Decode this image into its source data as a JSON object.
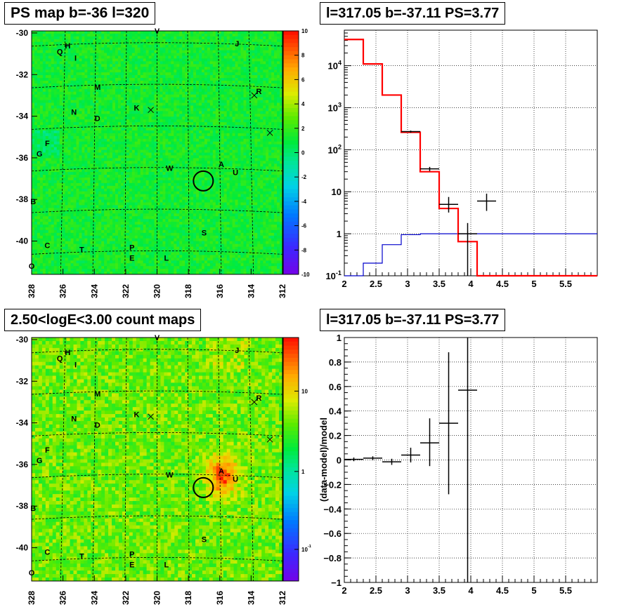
{
  "panels": {
    "tl_title": "PS map b=-36 l=320",
    "tr_title": "l=317.05 b=-37.11 PS=3.77",
    "bl_title": "2.50<logE<3.00 count maps",
    "br_title": "l=317.05 b=-37.11 PS=3.77"
  },
  "colors": {
    "model_red": "#ff0000",
    "blue": "#0000cc",
    "data": "#000000"
  },
  "chart_data": [
    {
      "type": "heatmap",
      "title": "PS map b=-36 l=320",
      "x_ticks": [
        "328",
        "326",
        "324",
        "322",
        "320",
        "318",
        "316",
        "314",
        "312"
      ],
      "y_ticks": [
        "-30",
        "-32",
        "-34",
        "-36",
        "-38",
        "-40"
      ],
      "xlim": [
        328,
        312
      ],
      "ylim": [
        -41.6,
        -29.9
      ],
      "colorbar": {
        "min": -10,
        "max": 10,
        "ticks": [
          "10",
          "8",
          "6",
          "4",
          "2",
          "0",
          "-2",
          "-4",
          "-6",
          "-8",
          "-10"
        ]
      },
      "labels": [
        {
          "t": "V",
          "l": 320.0,
          "b": -29.9
        },
        {
          "t": "J",
          "l": 314.9,
          "b": -30.5
        },
        {
          "t": "H",
          "l": 325.7,
          "b": -30.6
        },
        {
          "t": "Q",
          "l": 326.2,
          "b": -30.9
        },
        {
          "t": "I",
          "l": 325.2,
          "b": -31.2
        },
        {
          "t": "M",
          "l": 323.8,
          "b": -32.6
        },
        {
          "t": "R",
          "l": 313.5,
          "b": -32.8
        },
        {
          "t": "K",
          "l": 321.3,
          "b": -33.6
        },
        {
          "t": "N",
          "l": 325.3,
          "b": -33.8
        },
        {
          "t": "D",
          "l": 323.8,
          "b": -34.1
        },
        {
          "t": "F",
          "l": 327.0,
          "b": -35.3
        },
        {
          "t": "G",
          "l": 327.5,
          "b": -35.8
        },
        {
          "t": "W",
          "l": 319.2,
          "b": -36.5
        },
        {
          "t": "A",
          "l": 315.9,
          "b": -36.3
        },
        {
          "t": "U",
          "l": 315.0,
          "b": -36.7
        },
        {
          "t": "B",
          "l": 327.9,
          "b": -38.1
        },
        {
          "t": "S",
          "l": 317.0,
          "b": -39.6
        },
        {
          "t": "C",
          "l": 327.0,
          "b": -40.2
        },
        {
          "t": "T",
          "l": 324.8,
          "b": -40.4
        },
        {
          "t": "P",
          "l": 321.6,
          "b": -40.3
        },
        {
          "t": "E",
          "l": 321.6,
          "b": -40.8
        },
        {
          "t": "L",
          "l": 319.4,
          "b": -40.8
        },
        {
          "t": "O",
          "l": 328.0,
          "b": -41.2
        }
      ],
      "crosses": [
        {
          "l": 313.8,
          "b": -33.0
        },
        {
          "l": 320.4,
          "b": -33.7
        },
        {
          "l": 312.8,
          "b": -34.8
        }
      ],
      "circle": {
        "l": 317.05,
        "b": -37.11
      }
    },
    {
      "type": "line",
      "title": "l=317.05 b=-37.11 PS=3.77",
      "xlim": [
        2,
        6
      ],
      "ylim": [
        0.1,
        70000
      ],
      "ylog": true,
      "grid": true,
      "x_ticks": [
        2,
        2.5,
        3,
        3.5,
        4,
        4.5,
        5,
        5.5
      ],
      "y_ticks": [
        {
          "v": 0.1,
          "t": "10-1"
        },
        {
          "v": 1,
          "t": "1"
        },
        {
          "v": 10,
          "t": "10"
        },
        {
          "v": 100,
          "t": "102"
        },
        {
          "v": 1000,
          "t": "103"
        },
        {
          "v": 10000,
          "t": "104"
        }
      ],
      "model_red": {
        "edges": [
          2.0,
          2.3,
          2.6,
          2.9,
          3.2,
          3.5,
          3.8,
          4.1,
          6.0
        ],
        "values": [
          42000,
          11000,
          2000,
          260,
          30,
          4,
          0.65,
          0.1
        ]
      },
      "model_blue": {
        "edges": [
          2.0,
          2.3,
          2.6,
          2.9,
          3.2,
          3.5,
          3.8,
          4.1,
          6.0
        ],
        "values": [
          0.1,
          0.2,
          0.55,
          0.95,
          1.0,
          1.0,
          1.0,
          1.0
        ]
      },
      "data": [
        {
          "x": 3.05,
          "y": 270,
          "dx": 0.15,
          "ylo": 255,
          "yhi": 285
        },
        {
          "x": 3.35,
          "y": 35,
          "dx": 0.15,
          "ylo": 31,
          "yhi": 39
        },
        {
          "x": 3.65,
          "y": 5,
          "dx": 0.15,
          "ylo": 3.2,
          "yhi": 7.5
        },
        {
          "x": 3.95,
          "y": 1.0,
          "dx": 0.15,
          "ylo": 0.1,
          "yhi": 1.8
        },
        {
          "x": 4.25,
          "y": 6,
          "dx": 0.15,
          "ylo": 3.5,
          "yhi": 9
        }
      ]
    },
    {
      "type": "heatmap",
      "title": "2.50<logE<3.00 count maps",
      "x_ticks": [
        "328",
        "326",
        "324",
        "322",
        "320",
        "318",
        "316",
        "314",
        "312"
      ],
      "y_ticks": [
        "-30",
        "-32",
        "-34",
        "-36",
        "-38",
        "-40"
      ],
      "xlim": [
        328,
        312
      ],
      "ylim": [
        -41.6,
        -29.9
      ],
      "colorbar": {
        "scale": "log",
        "ticks": [
          "10",
          "1",
          "10-1"
        ]
      },
      "hotspot": {
        "l": 315.8,
        "b": -36.5
      }
    },
    {
      "type": "scatter",
      "title": "l=317.05 b=-37.11 PS=3.77",
      "ylabel": "(data-model)/model",
      "xlim": [
        2,
        6
      ],
      "ylim": [
        -1,
        1
      ],
      "grid": true,
      "x_ticks": [
        2,
        2.5,
        3,
        3.5,
        4,
        4.5,
        5,
        5.5
      ],
      "y_ticks": [
        -1,
        -0.8,
        -0.6,
        -0.4,
        -0.2,
        0,
        0.2,
        0.4,
        0.6,
        0.8,
        1
      ],
      "data": [
        {
          "x": 2.15,
          "y": 0.005,
          "dx": 0.15,
          "ylo": -0.01,
          "yhi": 0.02
        },
        {
          "x": 2.45,
          "y": 0.015,
          "dx": 0.15,
          "ylo": 0.0,
          "yhi": 0.03
        },
        {
          "x": 2.75,
          "y": -0.015,
          "dx": 0.15,
          "ylo": -0.04,
          "yhi": 0.01
        },
        {
          "x": 3.05,
          "y": 0.04,
          "dx": 0.15,
          "ylo": -0.02,
          "yhi": 0.1
        },
        {
          "x": 3.35,
          "y": 0.14,
          "dx": 0.15,
          "ylo": -0.05,
          "yhi": 0.34
        },
        {
          "x": 3.65,
          "y": 0.3,
          "dx": 0.15,
          "ylo": -0.28,
          "yhi": 0.88
        },
        {
          "x": 3.95,
          "y": 0.57,
          "dx": 0.15,
          "ylo": -1.0,
          "yhi": 1.0
        }
      ]
    }
  ]
}
